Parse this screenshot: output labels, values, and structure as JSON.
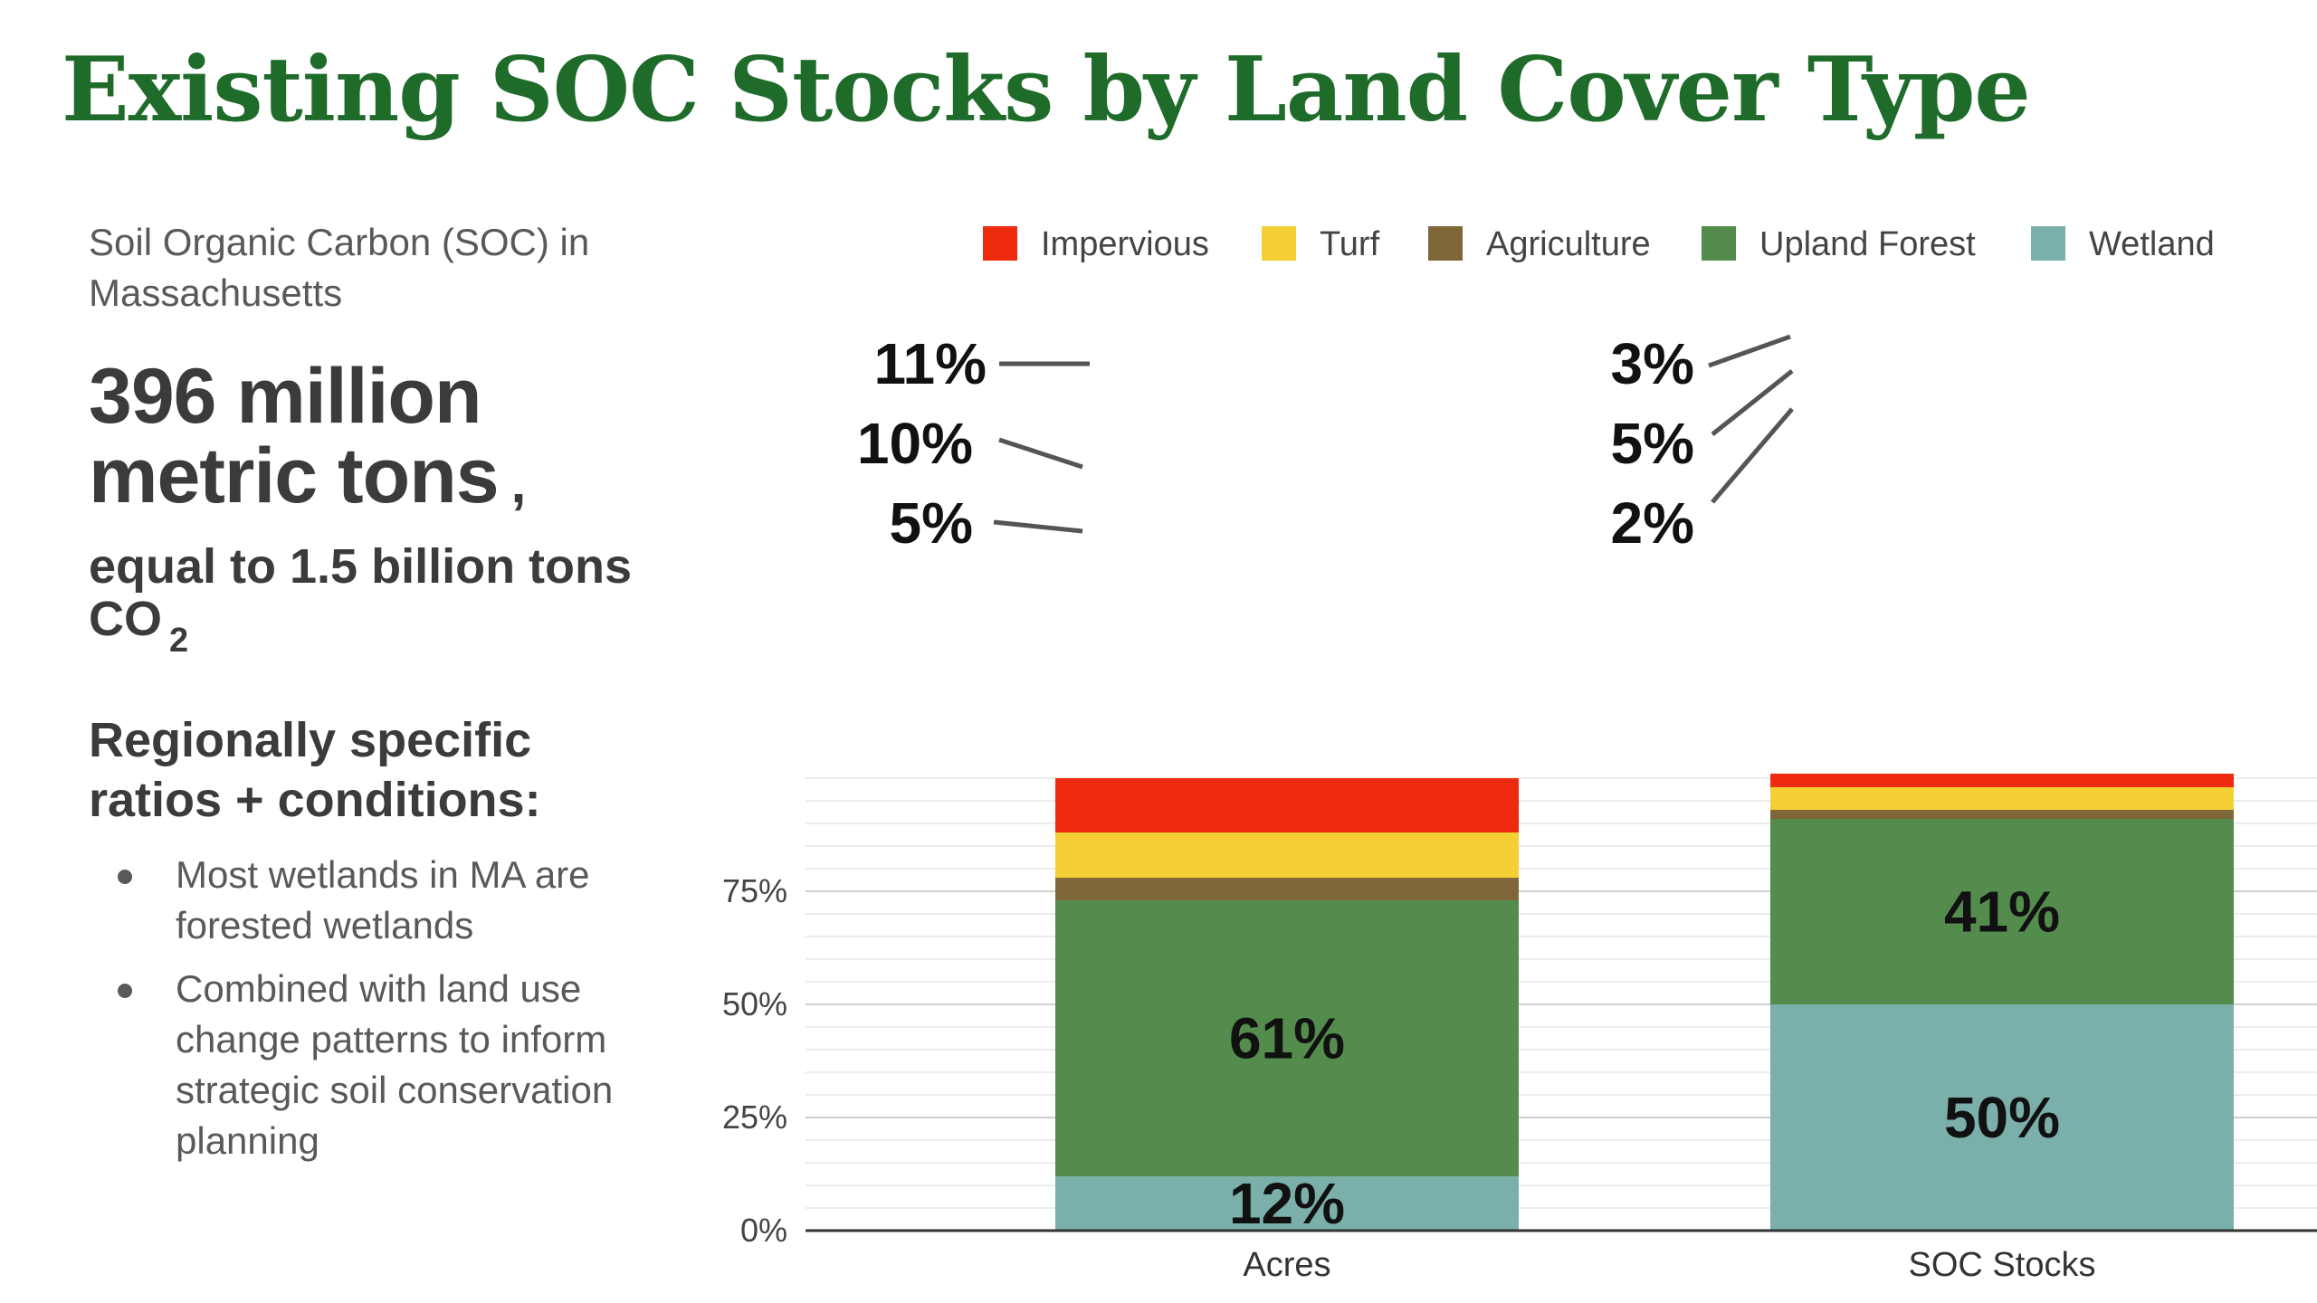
{
  "page": {
    "title": "Existing SOC Stocks by Land Cover Type",
    "subtitle": "Soil Organic Carbon (SOC) in Massachusetts",
    "headline": "396 million metric tons",
    "headline_comma": ",",
    "equal_text": "equal to 1.5 billion tons CO",
    "equal_sub": "2",
    "regional_heading": "Regionally specific ratios + conditions:",
    "bullets": [
      "Most wetlands in MA are forested wetlands",
      "Combined with land use change patterns to inform strategic soil conservation planning"
    ]
  },
  "chart_data": {
    "type": "bar",
    "stacked": true,
    "normalized_percent": true,
    "categories": [
      "Acres",
      "SOC Stocks"
    ],
    "series": [
      {
        "name": "Wetland",
        "color": "#7aafaa",
        "values": [
          12,
          50
        ]
      },
      {
        "name": "Upland Forest",
        "color": "#538c4d",
        "values": [
          61,
          41
        ]
      },
      {
        "name": "Agriculture",
        "color": "#80673a",
        "values": [
          5,
          2
        ]
      },
      {
        "name": "Turf",
        "color": "#f4d035",
        "values": [
          10,
          5
        ]
      },
      {
        "name": "Impervious",
        "color": "#ee2a0f",
        "values": [
          11,
          3
        ]
      }
    ],
    "legend_order": [
      "Impervious",
      "Turf",
      "Agriculture",
      "Upland Forest",
      "Wetland"
    ],
    "legend_position": "top",
    "data_labels": {
      "Acres": [
        "12%",
        "61%",
        "5%",
        "10%",
        "11%"
      ],
      "SOC Stocks": [
        "50%",
        "41%",
        "2%",
        "5%",
        "3%"
      ]
    },
    "y_ticks": [
      "0%",
      "25%",
      "50%",
      "75%"
    ],
    "ylim": [
      0,
      100
    ],
    "grid": true
  }
}
